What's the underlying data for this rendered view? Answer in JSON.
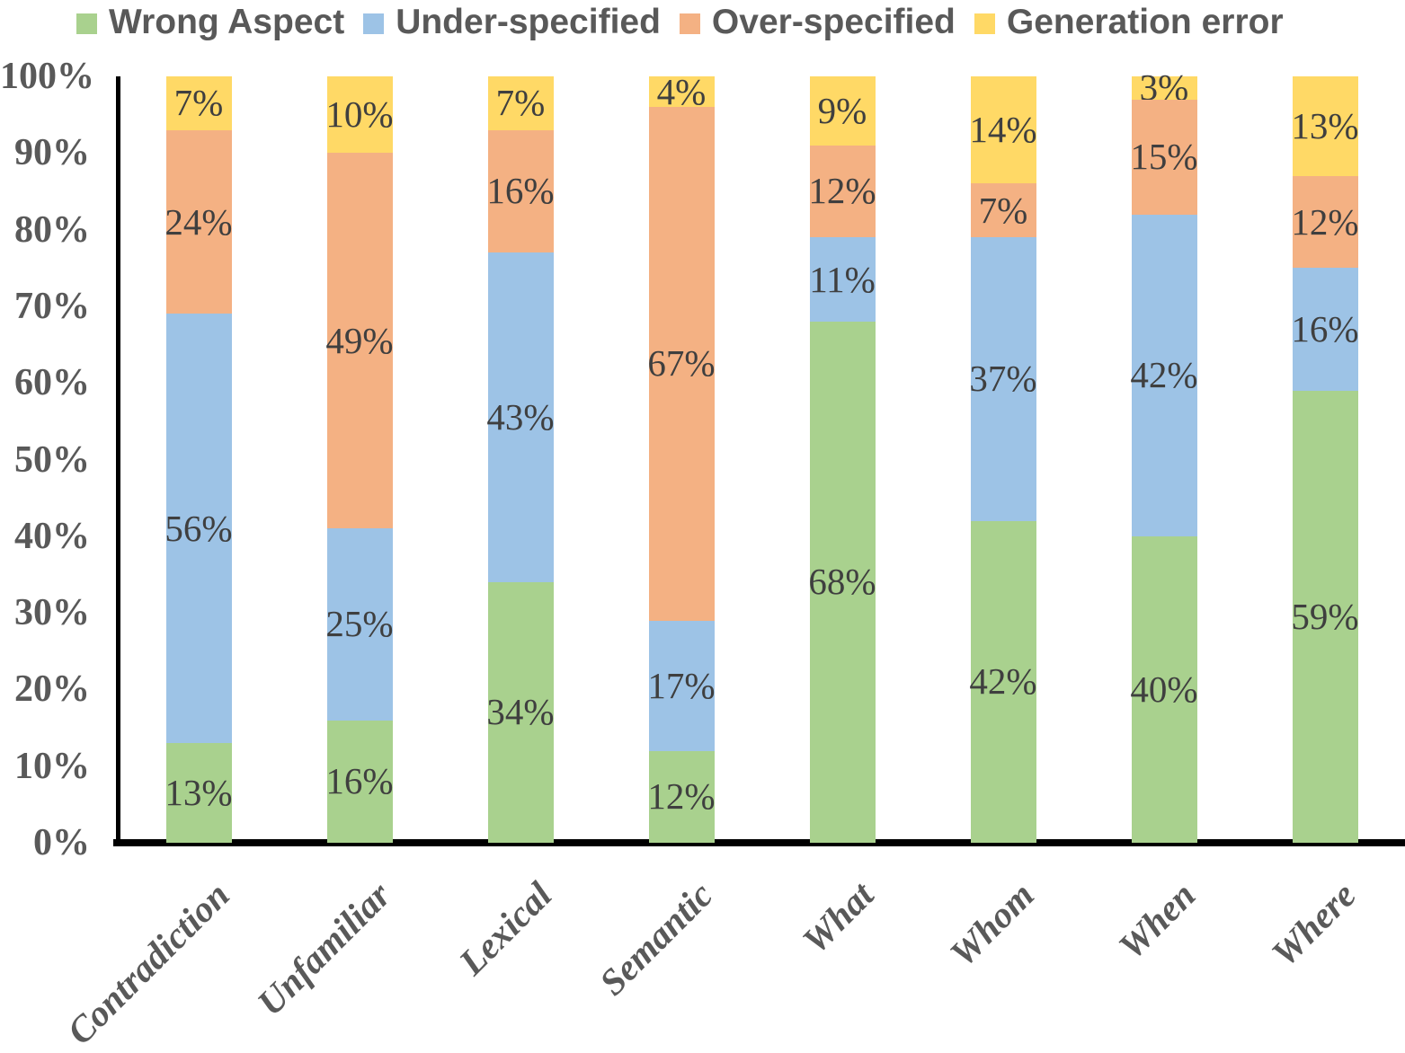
{
  "chart_data": {
    "type": "bar",
    "variant": "stacked-100-percent",
    "title": "",
    "xlabel": "",
    "ylabel": "",
    "categories": [
      "Contradiction",
      "Unfamiliar",
      "Lexical",
      "Semantic",
      "What",
      "Whom",
      "When",
      "Where"
    ],
    "series": [
      {
        "name": "Wrong Aspect",
        "color": "#A9D18E",
        "values": [
          13,
          16,
          34,
          12,
          68,
          42,
          40,
          59
        ]
      },
      {
        "name": "Under-specified",
        "color": "#9DC3E6",
        "values": [
          56,
          25,
          43,
          17,
          11,
          37,
          42,
          16
        ]
      },
      {
        "name": "Over-specified",
        "color": "#F4B183",
        "values": [
          24,
          49,
          16,
          67,
          12,
          7,
          15,
          12
        ]
      },
      {
        "name": "Generation error",
        "color": "#FFD966",
        "values": [
          7,
          10,
          7,
          4,
          9,
          14,
          3,
          13
        ]
      }
    ],
    "data_label_format": "{value}%",
    "y_ticks": [
      "0%",
      "10%",
      "20%",
      "30%",
      "40%",
      "50%",
      "60%",
      "70%",
      "80%",
      "90%",
      "100%"
    ],
    "ylim": [
      0,
      100
    ],
    "grid": false,
    "legend_position": "top",
    "colors": {
      "axis": "#000000",
      "data_label": "#3F3F3F",
      "tick_label": "#595959",
      "category_label": "#595959",
      "legend_text": "#595959",
      "background": "#FFFFFF"
    }
  }
}
